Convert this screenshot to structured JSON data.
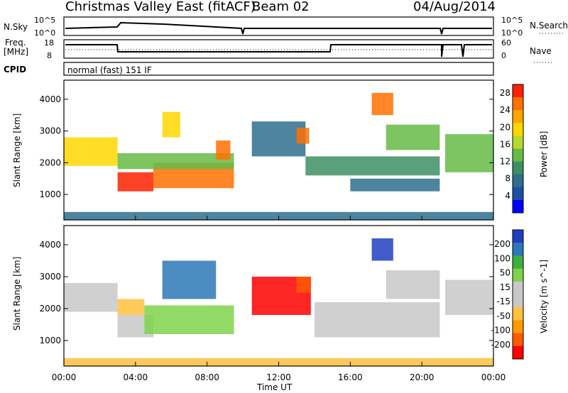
{
  "header": {
    "title": "Christmas Valley East (fitACF)",
    "beam": "Beam 02",
    "date": "04/Aug/2014"
  },
  "side_labels": {
    "nsky": "N.Sky",
    "freq": "Freq.",
    "freq_unit": "[MHz]",
    "cpid": "CPID",
    "nsearch": "N.Search",
    "nave": "Nave"
  },
  "cpid_text": "normal (fast) 151 IF",
  "panel_ticks": {
    "noise_left": [
      "10^5",
      "10^0"
    ],
    "noise_right": [
      "10^5",
      "10^0"
    ],
    "freq_left": [
      "18",
      "8"
    ],
    "freq_right": [
      "60",
      "0"
    ]
  },
  "colors": {
    "power_scale": [
      "#0000ff",
      "#1a4fa8",
      "#2e6e8e",
      "#3d8f64",
      "#66bb44",
      "#b8d830",
      "#ffd700",
      "#ffa500",
      "#ff7000",
      "#ff2000"
    ],
    "velocity_scale": [
      "#1f3fbf",
      "#2c78b8",
      "#3fae3f",
      "#7fd34a",
      "#c8c8c8",
      "#c8c8c8",
      "#ffc040",
      "#ff9a00",
      "#ff5a00",
      "#ff0000"
    ]
  },
  "chart_data": [
    {
      "type": "heatmap",
      "name": "power",
      "ylabel": "Slant Range [km]",
      "yticks": [
        "1000",
        "2000",
        "3000",
        "4000"
      ],
      "ylim": [
        200,
        4600
      ],
      "xlabel": "Time UT",
      "xticks": [
        "00:00",
        "04:00",
        "08:00",
        "12:00",
        "16:00",
        "20:00",
        "00:00"
      ],
      "xlim": [
        0,
        24
      ],
      "colorbar": {
        "label": "Power [dB]",
        "ticks": [
          "4",
          "8",
          "12",
          "16",
          "20",
          "24",
          "28"
        ],
        "range": [
          0,
          30
        ]
      },
      "regions": [
        {
          "t0": 0.0,
          "t1": 3.0,
          "r0": 1900,
          "r1": 2800,
          "value": 20
        },
        {
          "t0": 3.0,
          "t1": 5.0,
          "r0": 1100,
          "r1": 1700,
          "value": 28
        },
        {
          "t0": 5.0,
          "t1": 9.5,
          "r0": 1200,
          "r1": 2000,
          "value": 24
        },
        {
          "t0": 3.0,
          "t1": 9.5,
          "r0": 1800,
          "r1": 2300,
          "value": 12
        },
        {
          "t0": 5.5,
          "t1": 6.5,
          "r0": 2800,
          "r1": 3600,
          "value": 20
        },
        {
          "t0": 8.5,
          "t1": 9.3,
          "r0": 2100,
          "r1": 2700,
          "value": 24
        },
        {
          "t0": 10.5,
          "t1": 13.5,
          "r0": 2200,
          "r1": 3300,
          "value": 8
        },
        {
          "t0": 13.0,
          "t1": 13.7,
          "r0": 2600,
          "r1": 3100,
          "value": 24
        },
        {
          "t0": 13.5,
          "t1": 21.0,
          "r0": 1600,
          "r1": 2200,
          "value": 10
        },
        {
          "t0": 16.0,
          "t1": 21.0,
          "r0": 1100,
          "r1": 1500,
          "value": 8
        },
        {
          "t0": 17.2,
          "t1": 18.4,
          "r0": 3500,
          "r1": 4200,
          "value": 26
        },
        {
          "t0": 18.0,
          "t1": 21.0,
          "r0": 2400,
          "r1": 3200,
          "value": 12
        },
        {
          "t0": 21.3,
          "t1": 24.0,
          "r0": 1700,
          "r1": 2900,
          "value": 14
        },
        {
          "t0": 0.0,
          "t1": 24.0,
          "r0": 200,
          "r1": 450,
          "value": 8
        }
      ]
    },
    {
      "type": "heatmap",
      "name": "velocity",
      "ylabel": "Slant Range [km]",
      "yticks": [
        "1000",
        "2000",
        "3000",
        "4000"
      ],
      "ylim": [
        200,
        4600
      ],
      "xlabel": "Time UT",
      "xticks": [
        "00:00",
        "04:00",
        "08:00",
        "12:00",
        "16:00",
        "20:00",
        "00:00"
      ],
      "xlim": [
        0,
        24
      ],
      "colorbar": {
        "label": "Velocity [m s^-1]",
        "ticks": [
          "200",
          "100",
          "50",
          "15",
          "-15",
          "-50",
          "-100",
          "-200"
        ],
        "range": [
          -250,
          250
        ]
      },
      "regions": [
        {
          "t0": 0.0,
          "t1": 3.0,
          "r0": 1900,
          "r1": 2800,
          "value": 0
        },
        {
          "t0": 3.0,
          "t1": 5.0,
          "r0": 1100,
          "r1": 1800,
          "value": 0
        },
        {
          "t0": 4.5,
          "t1": 9.5,
          "r0": 1200,
          "r1": 2100,
          "value": 60
        },
        {
          "t0": 3.0,
          "t1": 4.5,
          "r0": 1800,
          "r1": 2300,
          "value": -60
        },
        {
          "t0": 5.5,
          "t1": 8.5,
          "r0": 2300,
          "r1": 3500,
          "value": 180
        },
        {
          "t0": 10.5,
          "t1": 13.8,
          "r0": 1800,
          "r1": 3000,
          "value": -220
        },
        {
          "t0": 13.0,
          "t1": 13.8,
          "r0": 2500,
          "r1": 3000,
          "value": -200
        },
        {
          "t0": 14.0,
          "t1": 21.0,
          "r0": 1100,
          "r1": 2200,
          "value": 0
        },
        {
          "t0": 17.2,
          "t1": 18.4,
          "r0": 3500,
          "r1": 4200,
          "value": 200
        },
        {
          "t0": 18.0,
          "t1": 21.0,
          "r0": 2300,
          "r1": 3200,
          "value": 0
        },
        {
          "t0": 21.3,
          "t1": 24.0,
          "r0": 1800,
          "r1": 2900,
          "value": 0
        },
        {
          "t0": 0.0,
          "t1": 24.0,
          "r0": 200,
          "r1": 450,
          "value": -60
        }
      ]
    }
  ]
}
